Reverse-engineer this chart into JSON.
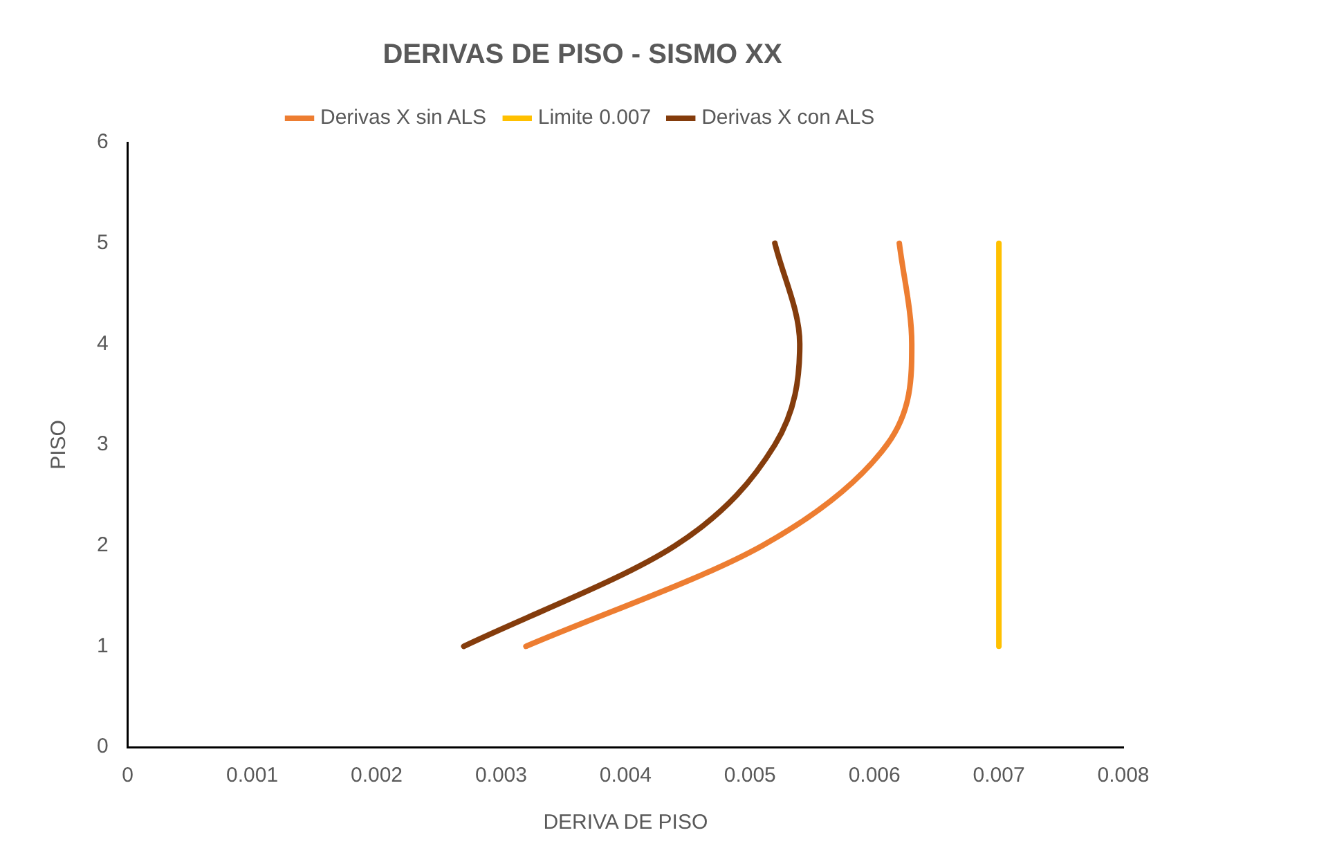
{
  "chart_data": {
    "type": "line",
    "title": "DERIVAS DE PISO - SISMO XX",
    "xlabel": "DERIVA DE PISO",
    "ylabel": "PISO",
    "series": [
      {
        "name": "Derivas X sin ALS",
        "color": "#ed7d31",
        "x": [
          0.0032,
          0.0051,
          0.0061,
          0.0063,
          0.0062
        ],
        "values": [
          1,
          2,
          3,
          4,
          5
        ]
      },
      {
        "name": "Limite 0.007",
        "color": "#ffc000",
        "x": [
          0.007,
          0.007
        ],
        "values": [
          1,
          5
        ]
      },
      {
        "name": "Derivas X con ALS",
        "color": "#843c0c",
        "x": [
          0.0027,
          0.0044,
          0.0052,
          0.0054,
          0.0052
        ],
        "values": [
          1,
          2,
          3,
          4,
          5
        ]
      }
    ],
    "xlim": [
      0,
      0.008
    ],
    "xticks": [
      0,
      0.001,
      0.002,
      0.003,
      0.004,
      0.005,
      0.006,
      0.007,
      0.008
    ],
    "ylim": [
      0,
      6
    ],
    "yticks": [
      0,
      1,
      2,
      3,
      4,
      5,
      6
    ],
    "grid": false,
    "legend": "top"
  }
}
